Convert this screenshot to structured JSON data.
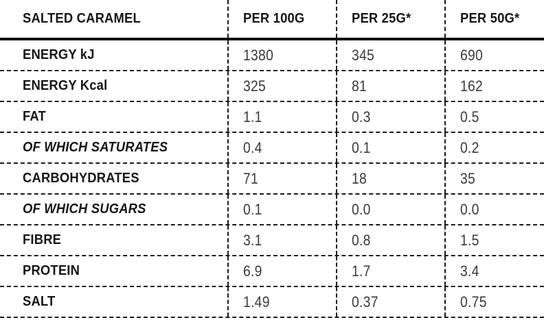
{
  "table": {
    "title": "SALTED CARAMEL",
    "columns": [
      "PER 100G",
      "PER 25G*",
      "PER 50G*"
    ],
    "rows": [
      {
        "label": "ENERGY kJ",
        "italic": false,
        "values": [
          "1380",
          "345",
          "690"
        ]
      },
      {
        "label": "ENERGY Kcal",
        "italic": false,
        "values": [
          "325",
          "81",
          "162"
        ]
      },
      {
        "label": "FAT",
        "italic": false,
        "values": [
          "1.1",
          "0.3",
          "0.5"
        ]
      },
      {
        "label": "OF WHICH SATURATES",
        "italic": true,
        "values": [
          "0.4",
          "0.1",
          "0.2"
        ]
      },
      {
        "label": "CARBOHYDRATES",
        "italic": false,
        "values": [
          "71",
          "18",
          "35"
        ]
      },
      {
        "label": "OF WHICH SUGARS",
        "italic": true,
        "values": [
          "0.1",
          "0.0",
          "0.0"
        ]
      },
      {
        "label": "FIBRE",
        "italic": false,
        "values": [
          "3.1",
          "0.8",
          "1.5"
        ]
      },
      {
        "label": "PROTEIN",
        "italic": false,
        "values": [
          "6.9",
          "1.7",
          "3.4"
        ]
      },
      {
        "label": "SALT",
        "italic": false,
        "values": [
          "1.49",
          "0.37",
          "0.75"
        ]
      }
    ],
    "colors": {
      "background": "#ffffff",
      "label_text": "#161616",
      "value_text": "#3a3a3a",
      "rule": "#0a0a0a",
      "dashed_line": "#1a1a1a"
    }
  }
}
